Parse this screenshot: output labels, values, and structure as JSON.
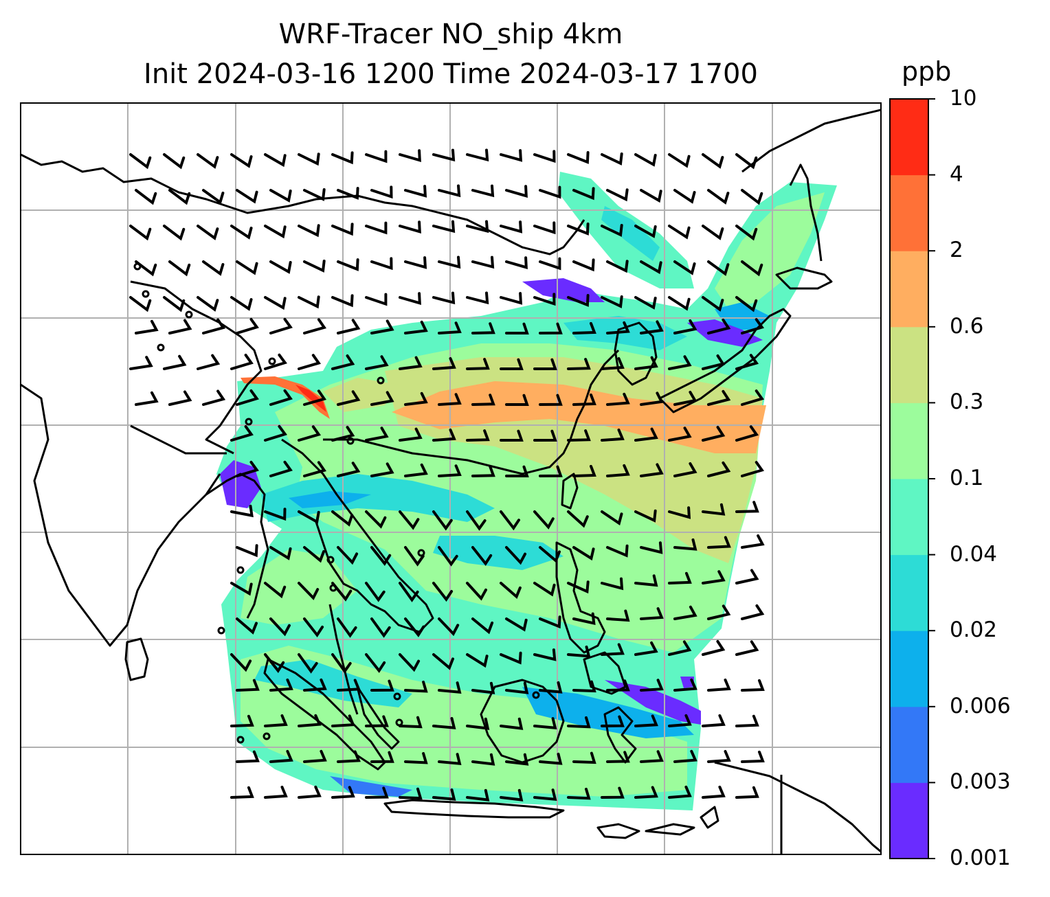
{
  "title": {
    "line1": "WRF-Tracer NO_ship 4km",
    "line2": "Init 2024-03-16 1200 Time 2024-03-17 1700"
  },
  "colorbar": {
    "unit": "ppb",
    "levels": [
      "0.001",
      "0.003",
      "0.006",
      "0.02",
      "0.04",
      "0.1",
      "0.3",
      "0.6",
      "2",
      "4",
      "10"
    ],
    "colors": [
      "#6a2cff",
      "#3378f7",
      "#0db0ec",
      "#2ddcd6",
      "#5ff6c3",
      "#9cfc9c",
      "#cbe282",
      "#ffae60",
      "#ff7137",
      "#ff2c15"
    ]
  },
  "map": {
    "gridlines": true,
    "coastline_color": "#000000",
    "gridline_color": "#b0b0b0"
  }
}
